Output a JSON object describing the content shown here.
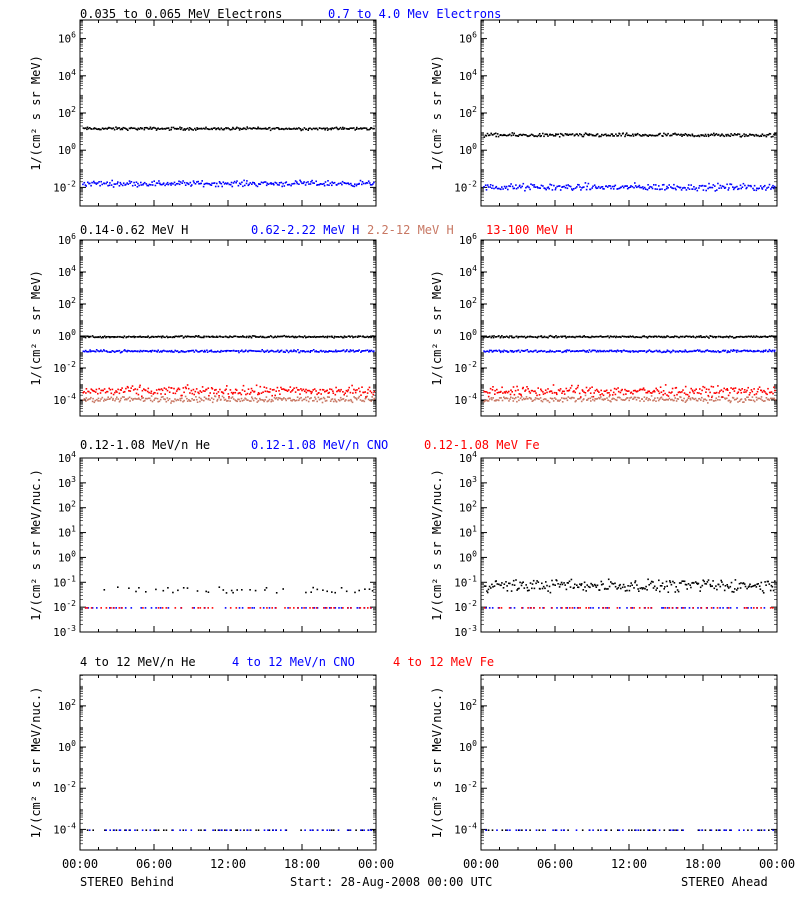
{
  "time_axis": {
    "tick_labels": [
      "00:00",
      "06:00",
      "12:00",
      "18:00",
      "00:00"
    ],
    "left_label": "STEREO Behind",
    "center_label": "Start: 28-Aug-2008 00:00 UTC",
    "right_label": "STEREO Ahead"
  },
  "colors": {
    "black": "#000000",
    "blue": "#0000ff",
    "brown": "#c87864",
    "red": "#ff0000"
  },
  "chart_data": [
    {
      "type": "scatter",
      "row": 0,
      "legend": [
        {
          "label": "0.035 to 0.065 MeV Electrons",
          "color": "#000000"
        },
        {
          "label": "0.7 to 4.0 Mev Electrons",
          "color": "#0000ff"
        }
      ],
      "ylabel": "1/(cm² s sr MeV)",
      "scale": "log",
      "ylim_exp": [
        -3,
        7
      ],
      "ytick_exponents": [
        -2,
        0,
        2,
        4,
        6
      ],
      "x_range_hours": [
        0,
        24
      ],
      "panels": [
        {
          "side": "STEREO Behind",
          "series": [
            {
              "color": "#000000",
              "level_exp": 1.2,
              "scatter_exp": 0.06
            },
            {
              "color": "#0000ff",
              "level_exp": -1.75,
              "scatter_exp": 0.12
            }
          ]
        },
        {
          "side": "STEREO Ahead",
          "series": [
            {
              "color": "#000000",
              "level_exp": 0.85,
              "scatter_exp": 0.08
            },
            {
              "color": "#0000ff",
              "level_exp": -1.95,
              "scatter_exp": 0.15
            }
          ]
        }
      ]
    },
    {
      "type": "scatter",
      "row": 1,
      "legend": [
        {
          "label": "0.14-0.62 MeV H",
          "color": "#000000"
        },
        {
          "label": "0.62-2.22 MeV H",
          "color": "#0000ff"
        },
        {
          "label": "2.2-12 MeV H",
          "color": "#c87864"
        },
        {
          "label": "13-100 MeV H",
          "color": "#ff0000"
        }
      ],
      "ylabel": "1/(cm² s sr MeV)",
      "scale": "log",
      "ylim_exp": [
        -5,
        6
      ],
      "ytick_exponents": [
        -4,
        -2,
        0,
        2,
        4,
        6
      ],
      "x_range_hours": [
        0,
        24
      ],
      "panels": [
        {
          "side": "STEREO Behind",
          "series": [
            {
              "color": "#000000",
              "level_exp": 0.0,
              "scatter_exp": 0.05
            },
            {
              "color": "#0000ff",
              "level_exp": -0.9,
              "scatter_exp": 0.06
            },
            {
              "color": "#c87864",
              "level_exp": -3.9,
              "scatter_exp": 0.15
            },
            {
              "color": "#ff0000",
              "level_exp": -3.4,
              "scatter_exp": 0.25
            }
          ]
        },
        {
          "side": "STEREO Ahead",
          "series": [
            {
              "color": "#000000",
              "level_exp": 0.0,
              "scatter_exp": 0.05
            },
            {
              "color": "#0000ff",
              "level_exp": -0.9,
              "scatter_exp": 0.06
            },
            {
              "color": "#c87864",
              "level_exp": -3.9,
              "scatter_exp": 0.15
            },
            {
              "color": "#ff0000",
              "level_exp": -3.4,
              "scatter_exp": 0.25
            }
          ]
        }
      ]
    },
    {
      "type": "scatter",
      "row": 2,
      "legend": [
        {
          "label": "0.12-1.08 MeV/n He",
          "color": "#000000"
        },
        {
          "label": "0.12-1.08 MeV/n CNO",
          "color": "#0000ff"
        },
        {
          "label": "0.12-1.08 MeV Fe",
          "color": "#ff0000"
        }
      ],
      "ylabel": "1/(cm² s sr MeV/nuc.)",
      "scale": "log",
      "ylim_exp": [
        -3,
        4
      ],
      "ytick_exponents": [
        -3,
        -2,
        -1,
        0,
        1,
        2,
        3,
        4
      ],
      "x_range_hours": [
        0,
        24
      ],
      "panels": [
        {
          "side": "STEREO Behind",
          "series": [
            {
              "color": "#000000",
              "level_exp": -1.3,
              "scatter_exp": 0.1,
              "sparse": true
            },
            {
              "color": "#0000ff",
              "level_exp": -2.0,
              "scatter_exp": 0.0,
              "sparse": true
            },
            {
              "color": "#ff0000",
              "level_exp": -2.0,
              "scatter_exp": 0.0,
              "sparse": true
            }
          ]
        },
        {
          "side": "STEREO Ahead",
          "series": [
            {
              "color": "#000000",
              "level_exp": -1.1,
              "scatter_exp": 0.2
            },
            {
              "color": "#0000ff",
              "level_exp": -2.0,
              "scatter_exp": 0.0,
              "sparse": true
            },
            {
              "color": "#ff0000",
              "level_exp": -2.0,
              "scatter_exp": 0.0,
              "sparse": true
            }
          ]
        }
      ]
    },
    {
      "type": "scatter",
      "row": 3,
      "legend": [
        {
          "label": "4 to 12 MeV/n He",
          "color": "#000000"
        },
        {
          "label": "4 to 12 MeV/n CNO",
          "color": "#0000ff"
        },
        {
          "label": "4 to 12 MeV Fe",
          "color": "#ff0000"
        }
      ],
      "ylabel": "1/(cm² s sr MeV/nuc.)",
      "scale": "log",
      "ylim_exp": [
        -5,
        3.5
      ],
      "ytick_exponents": [
        -4,
        -2,
        0,
        2
      ],
      "x_range_hours": [
        0,
        24
      ],
      "panels": [
        {
          "side": "STEREO Behind",
          "series": [
            {
              "color": "#000000",
              "level_exp": -4.0,
              "scatter_exp": 0.0,
              "sparse": true
            },
            {
              "color": "#0000ff",
              "level_exp": -4.0,
              "scatter_exp": 0.0,
              "sparse": true
            }
          ]
        },
        {
          "side": "STEREO Ahead",
          "series": [
            {
              "color": "#000000",
              "level_exp": -4.0,
              "scatter_exp": 0.0,
              "sparse": true
            },
            {
              "color": "#0000ff",
              "level_exp": -4.0,
              "scatter_exp": 0.0,
              "sparse": true
            }
          ]
        }
      ]
    }
  ]
}
